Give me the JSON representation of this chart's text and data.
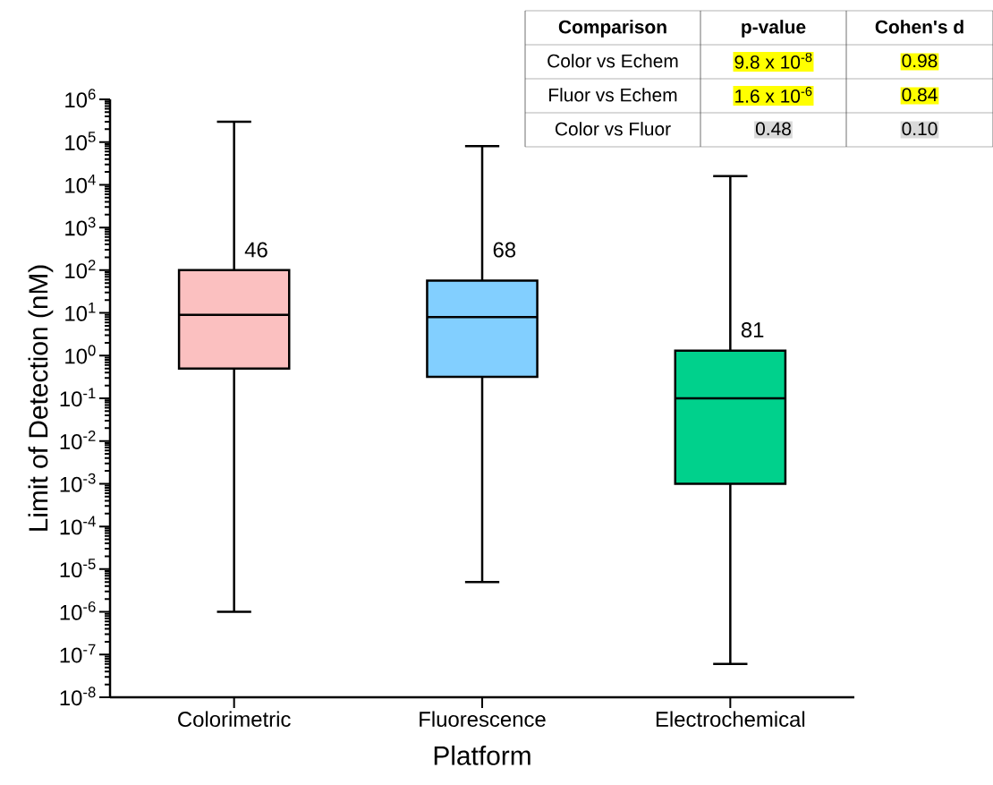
{
  "chart_data": {
    "type": "box",
    "xlabel": "Platform",
    "ylabel": "Limit of Detection (nM)",
    "categories": [
      "Colorimetric",
      "Fluorescence",
      "Electrochemical"
    ],
    "boxes": [
      {
        "low": 1e-06,
        "q1": 0.5,
        "median": 9,
        "q3": 100,
        "high": 300000.0
      },
      {
        "low": 5e-06,
        "q1": 0.32,
        "median": 8,
        "q3": 57,
        "high": 80000.0
      },
      {
        "low": 6e-08,
        "q1": 0.001,
        "median": 0.1,
        "q3": 1.3,
        "high": 16000.0
      }
    ],
    "colors": [
      "#fbc0c0",
      "#82cfff",
      "#00d18c"
    ],
    "log": "y",
    "ylim": [
      1e-08,
      1000000.0
    ],
    "yticks": [
      {
        "value": 1e-08,
        "label": "10$^{-8}$"
      },
      {
        "value": 1e-07,
        "label": "10$^{-7}$"
      },
      {
        "value": 1e-06,
        "label": "10$^{-6}$"
      },
      {
        "value": 1e-05,
        "label": "10$^{-5}$"
      },
      {
        "value": 0.0001,
        "label": "10$^{-4}$"
      },
      {
        "value": 0.001,
        "label": "10$^{-3}$"
      },
      {
        "value": 0.01,
        "label": "10$^{-2}$"
      },
      {
        "value": 0.1,
        "label": "10$^{-1}$"
      },
      {
        "value": 1,
        "label": "10$^{0}$"
      },
      {
        "value": 10,
        "label": "10$^{1}$"
      },
      {
        "value": 100,
        "label": "10$^{2}$"
      },
      {
        "value": 1000,
        "label": "10$^{3}$"
      },
      {
        "value": 10000.0,
        "label": "10$^{4}$"
      },
      {
        "value": 100000.0,
        "label": "10$^{5}$"
      },
      {
        "value": 1000000.0,
        "label": "10$^{6}$"
      }
    ],
    "annotations": [
      {
        "text": "46",
        "x": "Colorimetric",
        "y": 300
      },
      {
        "text": "68",
        "x": "Fluorescence",
        "y": 300
      },
      {
        "text": "81",
        "x": "Electrochemical",
        "y": 4
      },
      "Comparison",
      "p-value",
      "Cohen's d",
      "Color vs Echem",
      "9.8 x 10$^{-8}$",
      "0.98",
      "Fluor vs Echem",
      "1.6 x 10$^{-6}$",
      "0.84",
      "Color vs Fluor",
      "0.48",
      "0.10"
    ]
  }
}
